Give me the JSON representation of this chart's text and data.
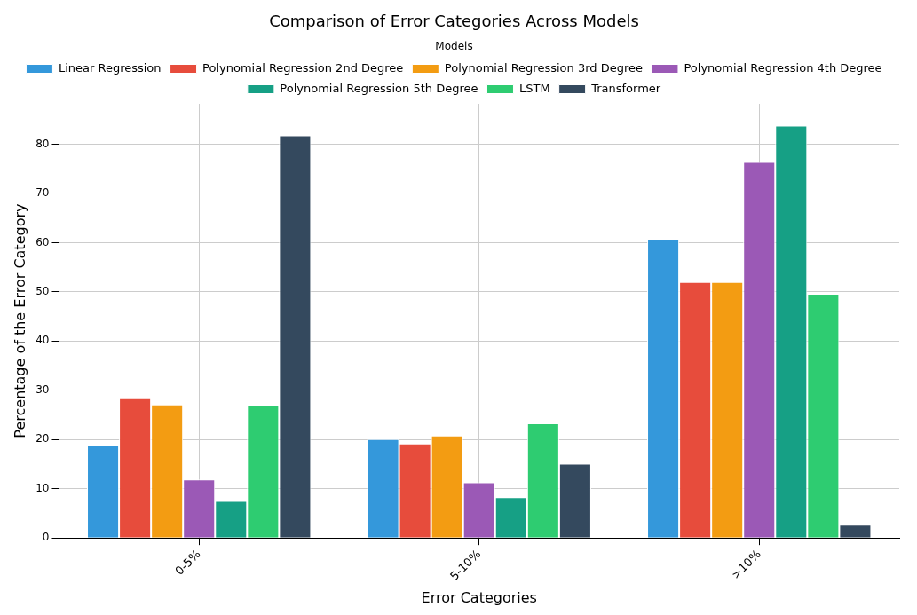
{
  "chart_data": {
    "type": "bar",
    "title": "Comparison of Error Categories Across Models",
    "xlabel": "Error Categories",
    "ylabel": "Percentage of the Error Category",
    "legend_title": "Models",
    "categories": [
      "0-5%",
      "5-10%",
      ">10%"
    ],
    "series": [
      {
        "name": "Linear Regression",
        "color": "#3498db",
        "values": [
          18.8,
          20.1,
          60.8
        ]
      },
      {
        "name": "Polynomial Regression 2nd Degree",
        "color": "#e74c3c",
        "values": [
          28.4,
          19.2,
          52.0
        ]
      },
      {
        "name": "Polynomial Regression 3rd Degree",
        "color": "#f39c12",
        "values": [
          27.1,
          20.8,
          52.0
        ]
      },
      {
        "name": "Polynomial Regression 4th Degree",
        "color": "#9b59b6",
        "values": [
          11.9,
          11.3,
          76.4
        ]
      },
      {
        "name": "Polynomial Regression 5th Degree",
        "color": "#16a085",
        "values": [
          7.5,
          8.3,
          83.8
        ]
      },
      {
        "name": "LSTM",
        "color": "#2ecc71",
        "values": [
          26.9,
          23.3,
          49.6
        ]
      },
      {
        "name": "Transformer",
        "color": "#34495e",
        "values": [
          81.8,
          15.1,
          2.7
        ]
      }
    ],
    "ylim": [
      0,
      88.2
    ],
    "yticks": [
      0,
      10,
      20,
      30,
      40,
      50,
      60,
      70,
      80
    ],
    "grid": true,
    "legend": "top"
  }
}
